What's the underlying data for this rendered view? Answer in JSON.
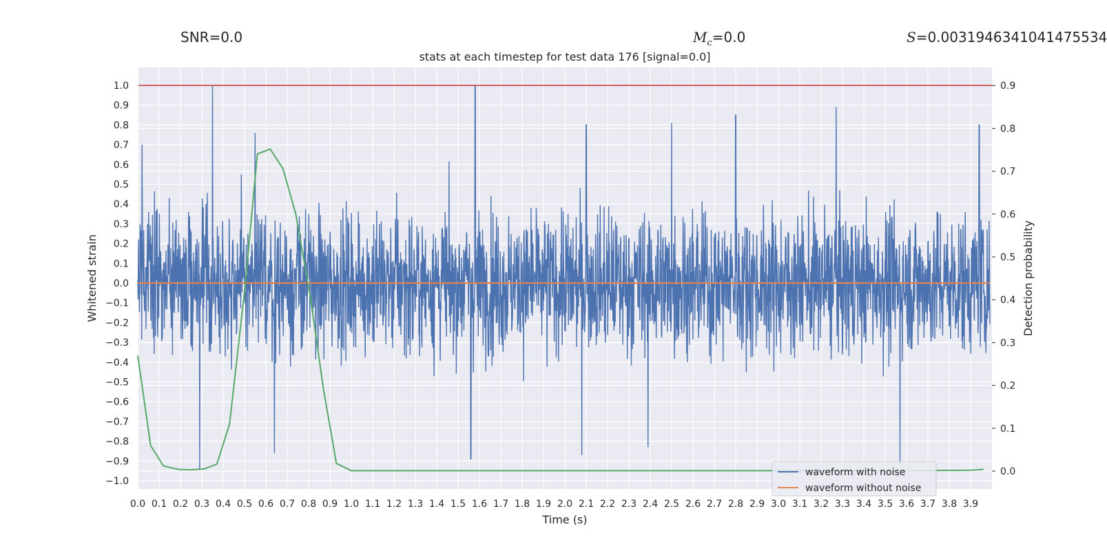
{
  "header": {
    "snr_label": "SNR=0.0",
    "mc_symbol": "M",
    "mc_subscript": "c",
    "mc_value": "=0.0",
    "s_symbol": "S",
    "s_value": "=0.0031946341041475534"
  },
  "chart_data": {
    "type": "line",
    "title": "stats at each timestep for test data 176 [signal=0.0]",
    "xlabel": "Time (s)",
    "ylabel": "Whitened strain",
    "y2label": "Detection probability",
    "xlim": [
      0.0,
      3.99
    ],
    "ylim": [
      -1.07,
      1.1
    ],
    "y2lim": [
      -0.04,
      0.94
    ],
    "x_ticks": [
      "0.0",
      "0.1",
      "0.2",
      "0.3",
      "0.4",
      "0.5",
      "0.6",
      "0.7",
      "0.8",
      "0.9",
      "1.0",
      "1.1",
      "1.2",
      "1.3",
      "1.4",
      "1.5",
      "1.6",
      "1.7",
      "1.8",
      "1.9",
      "2.0",
      "2.1",
      "2.2",
      "2.3",
      "2.4",
      "2.5",
      "2.6",
      "2.7",
      "2.8",
      "2.9",
      "3.0",
      "3.1",
      "3.2",
      "3.3",
      "3.4",
      "3.5",
      "3.6",
      "3.7",
      "3.8",
      "3.9"
    ],
    "y_ticks": [
      "1.0",
      "0.9",
      "0.8",
      "0.7",
      "0.6",
      "0.5",
      "0.4",
      "0.3",
      "0.2",
      "0.1",
      "0.0",
      "−0.1",
      "−0.2",
      "−0.3",
      "−0.4",
      "−0.5",
      "−0.6",
      "−0.7",
      "−0.8",
      "−0.9",
      "−1.0"
    ],
    "y2_ticks": [
      "0.9",
      "0.8",
      "0.7",
      "0.6",
      "0.5",
      "0.4",
      "0.3",
      "0.2",
      "0.1",
      "0.0"
    ],
    "grid": true,
    "legend_position": "bottom-right",
    "series": [
      {
        "name": "waveform with noise",
        "color": "#4c72b0",
        "axis": "left",
        "noise_envelope": 0.45,
        "peaks": [
          {
            "x": 0.35,
            "y": 1.0
          },
          {
            "x": 1.58,
            "y": 1.0
          },
          {
            "x": 3.27,
            "y": 0.89
          },
          {
            "x": 2.8,
            "y": 0.85
          },
          {
            "x": 0.55,
            "y": 0.76
          },
          {
            "x": 2.5,
            "y": 0.81
          },
          {
            "x": 2.1,
            "y": 0.8
          },
          {
            "x": 3.94,
            "y": 0.8
          },
          {
            "x": 0.02,
            "y": 0.7
          },
          {
            "x": 0.29,
            "y": -0.94
          },
          {
            "x": 1.56,
            "y": -0.89
          },
          {
            "x": 3.57,
            "y": -0.92
          },
          {
            "x": 0.64,
            "y": -0.86
          },
          {
            "x": 2.39,
            "y": -0.83
          },
          {
            "x": 2.08,
            "y": -0.87
          }
        ]
      },
      {
        "name": "waveform without noise",
        "color": "#dd8452",
        "axis": "left",
        "x": [
          0.0,
          3.99
        ],
        "y": [
          0.0,
          0.0
        ]
      },
      {
        "name": "",
        "color": "#55a868",
        "axis": "right",
        "x": [
          0.0,
          0.06,
          0.12,
          0.19,
          0.25,
          0.31,
          0.37,
          0.43,
          0.5,
          0.56,
          0.62,
          0.68,
          0.74,
          0.81,
          0.87,
          0.93,
          1.0,
          1.06,
          1.5,
          2.0,
          2.5,
          3.0,
          3.5,
          3.9,
          3.96
        ],
        "y": [
          0.27,
          0.06,
          0.012,
          0.004,
          0.003,
          0.005,
          0.016,
          0.11,
          0.42,
          0.74,
          0.752,
          0.706,
          0.6,
          0.4,
          0.19,
          0.018,
          0.001,
          0.001,
          0.001,
          0.001,
          0.001,
          0.001,
          0.001,
          0.002,
          0.004
        ]
      },
      {
        "name": "",
        "color": "#c44e52",
        "axis": "left",
        "x": [
          0.0,
          3.99
        ],
        "y": [
          1.0,
          1.0
        ]
      }
    ]
  }
}
